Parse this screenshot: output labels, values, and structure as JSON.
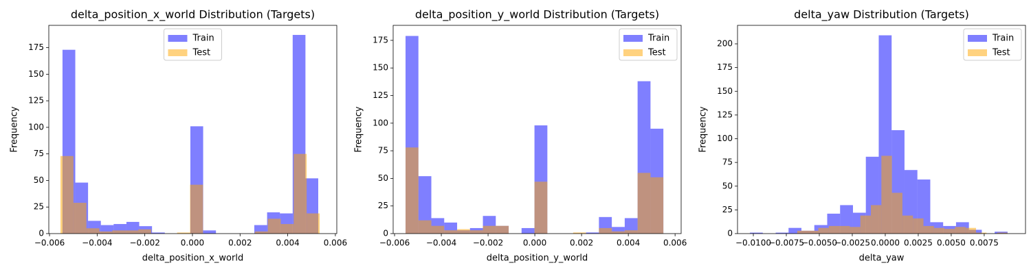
{
  "chart_data": [
    {
      "type": "histogram",
      "title": "delta_position_x_world Distribution (Targets)",
      "xlabel": "delta_position_x_world",
      "ylabel": "Frequency",
      "xlim": [
        -0.00603,
        0.00606
      ],
      "ylim": [
        0,
        196
      ],
      "xticks": [
        {
          "value": -0.006,
          "label": "−0.006"
        },
        {
          "value": -0.004,
          "label": "−0.004"
        },
        {
          "value": -0.002,
          "label": "−0.002"
        },
        {
          "value": 0,
          "label": "0.000"
        },
        0.002,
        0.004,
        0.006
      ],
      "yticks": [
        0,
        25,
        50,
        75,
        100,
        125,
        150,
        175
      ],
      "legend": "upper center",
      "series": [
        {
          "name": "Train",
          "color": "#0000ff",
          "bins": [
            -0.005455,
            -0.004918,
            -0.004382,
            -0.003845,
            -0.003308,
            -0.002771,
            -0.002234,
            -0.001697,
            -0.001161,
            -0.000624,
            -8.7e-05,
            0.00045,
            0.000987,
            0.001523,
            0.00206,
            0.002597,
            0.003134,
            0.003671,
            0.004208,
            0.004744,
            0.005281
          ],
          "values": [
            173,
            48,
            12,
            8,
            9,
            11,
            7,
            1,
            0,
            0,
            101,
            3,
            0,
            0,
            0,
            8,
            20,
            19,
            187,
            52
          ]
        },
        {
          "name": "Test",
          "color": "#ffa500",
          "bins": [
            -0.00554,
            -0.004996,
            -0.004452,
            -0.003908,
            -0.003364,
            -0.00282,
            -0.002276,
            -0.001732,
            -0.001188,
            -0.000644,
            -0.0001,
            0.000444,
            0.000988,
            0.001532,
            0.002076,
            0.00262,
            0.003164,
            0.003708,
            0.004252,
            0.004796,
            0.00534
          ],
          "values": [
            73,
            29,
            5,
            2,
            3,
            3,
            4,
            0,
            0,
            1,
            46,
            0,
            0,
            0,
            0,
            2,
            14,
            9,
            75,
            19
          ]
        }
      ]
    },
    {
      "type": "histogram",
      "title": "delta_position_y_world Distribution (Targets)",
      "xlabel": "delta_position_y_world",
      "ylabel": "Frequency",
      "xlim": [
        -0.00606,
        0.00626
      ],
      "ylim": [
        0,
        188.6
      ],
      "xticks": [
        {
          "value": -0.006,
          "label": "−0.006"
        },
        {
          "value": -0.004,
          "label": "−0.004"
        },
        {
          "value": -0.002,
          "label": "−0.002"
        },
        {
          "value": 0,
          "label": "0.000"
        },
        0.002,
        0.004,
        0.006
      ],
      "yticks": [
        0,
        25,
        50,
        75,
        100,
        125,
        150,
        175
      ],
      "legend": "upper right",
      "series": [
        {
          "name": "Train",
          "color": "#0000ff",
          "bins": [
            -0.00553,
            -0.004979,
            -0.004427,
            -0.003876,
            -0.003324,
            -0.002773,
            -0.002221,
            -0.00167,
            -0.001118,
            -0.000567,
            -1.5e-05,
            0.000537,
            0.001088,
            0.00164,
            0.002191,
            0.002743,
            0.003294,
            0.003846,
            0.004397,
            0.004949,
            0.0055
          ],
          "values": [
            179,
            52,
            14,
            10,
            3,
            5,
            16,
            7,
            0,
            5,
            98,
            0,
            0,
            0,
            1,
            15,
            6,
            14,
            138,
            95
          ]
        },
        {
          "name": "Test",
          "color": "#ffa500",
          "bins": [
            -0.00553,
            -0.004979,
            -0.004427,
            -0.003876,
            -0.003324,
            -0.002773,
            -0.002221,
            -0.00167,
            -0.001118,
            -0.000567,
            -1.5e-05,
            0.000537,
            0.001088,
            0.00164,
            0.002191,
            0.002743,
            0.003294,
            0.003846,
            0.004397,
            0.004949,
            0.0055
          ],
          "values": [
            78,
            12,
            7,
            3,
            4,
            3,
            7,
            7,
            0,
            0,
            47,
            0,
            0,
            1,
            0,
            5,
            2,
            3,
            55,
            51
          ]
        }
      ]
    },
    {
      "type": "histogram",
      "title": "delta_yaw Distribution (Targets)",
      "xlabel": "delta_yaw",
      "ylabel": "Frequency",
      "xlim": [
        -0.0112,
        0.01063
      ],
      "ylim": [
        0,
        219.5
      ],
      "xticks": [
        {
          "value": -0.01,
          "label": "−0.0100"
        },
        {
          "value": -0.0075,
          "label": "−0.0075"
        },
        {
          "value": -0.005,
          "label": "−0.0050"
        },
        {
          "value": -0.0025,
          "label": "−0.0025"
        },
        {
          "value": 0,
          "label": "0.0000"
        },
        0.0025,
        {
          "value": 0.005,
          "label": "0.0050"
        },
        0.0075
      ],
      "yticks": [
        0,
        25,
        50,
        75,
        100,
        125,
        150,
        175,
        200
      ],
      "legend": "upper right",
      "series": [
        {
          "name": "Train",
          "color": "#0000ff",
          "bins": [
            -0.01026,
            -0.009284,
            -0.008307,
            -0.007331,
            -0.006354,
            -0.005378,
            -0.004401,
            -0.003425,
            -0.002448,
            -0.001472,
            -0.000495,
            0.000482,
            0.001458,
            0.002435,
            0.003411,
            0.004388,
            0.005364,
            0.006341,
            0.007317,
            0.008294,
            0.00927
          ],
          "values": [
            1,
            0,
            1,
            6,
            3,
            9,
            21,
            30,
            22,
            81,
            209,
            109,
            67,
            57,
            12,
            8,
            12,
            4,
            0,
            2
          ]
        },
        {
          "name": "Test",
          "color": "#ffa500",
          "bins": [
            -0.00667,
            -0.005873,
            -0.005076,
            -0.004279,
            -0.003482,
            -0.002685,
            -0.001888,
            -0.001091,
            -0.000294,
            0.000503,
            0.0013,
            0.002097,
            0.002894,
            0.003691,
            0.004488,
            0.005285,
            0.006082,
            0.006879,
            0.007676,
            0.008473,
            0.00927
          ],
          "values": [
            3,
            3,
            6,
            8,
            8,
            7,
            19,
            30,
            82,
            43,
            19,
            16,
            8,
            6,
            5,
            7,
            6,
            1,
            0,
            1
          ]
        }
      ]
    }
  ]
}
